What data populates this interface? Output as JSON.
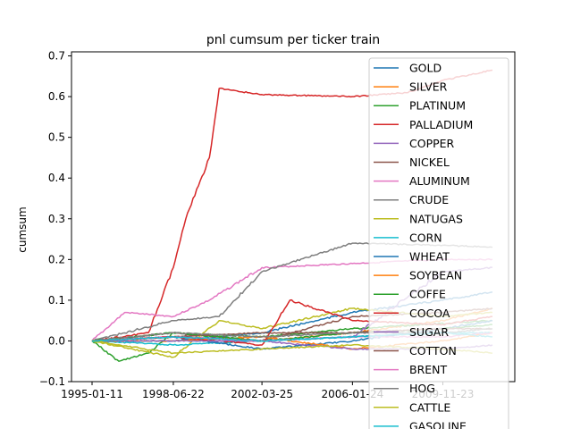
{
  "chart_data": {
    "type": "line",
    "title": "pnl cumsum per ticker train",
    "xlabel": "",
    "ylabel": "cumsum",
    "x_tick_labels": [
      "1995-01-11",
      "1998-06-22",
      "2002-03-25",
      "2006-01-24",
      "2009-11-23"
    ],
    "x_range": [
      "1995-01-11",
      "2011-12-31"
    ],
    "y_ticks": [
      -0.1,
      0.0,
      0.1,
      0.2,
      0.3,
      0.4,
      0.5,
      0.6,
      0.7
    ],
    "y_tick_labels": [
      "−0.1",
      "0.0",
      "0.1",
      "0.2",
      "0.3",
      "0.4",
      "0.5",
      "0.6",
      "0.7"
    ],
    "ylim": [
      -0.1,
      0.71
    ],
    "grid": false,
    "legend_position": "right (partially clipped below the plot)",
    "series": [
      {
        "name": "GOLD",
        "color": "#1f77b4",
        "x": [
          "1995-01-11",
          "1998-06-22",
          "2002-03-25",
          "2006-01-24",
          "2009-11-23",
          "2011-12-31"
        ],
        "y": [
          0.0,
          0.0,
          0.02,
          0.07,
          0.1,
          0.12
        ]
      },
      {
        "name": "SILVER",
        "color": "#ff7f0e",
        "x": [
          "1995-01-11",
          "1998-06-22",
          "2002-03-25",
          "2006-01-24",
          "2009-11-23",
          "2011-12-31"
        ],
        "y": [
          0.0,
          0.01,
          0.0,
          0.02,
          0.05,
          0.08
        ]
      },
      {
        "name": "PLATINUM",
        "color": "#2ca02c",
        "x": [
          "1995-01-11",
          "1996-03-01",
          "1997-06-01",
          "1998-06-22",
          "2002-03-25",
          "2006-01-24",
          "2011-12-31"
        ],
        "y": [
          0.0,
          -0.05,
          -0.03,
          0.02,
          0.01,
          0.03,
          0.05
        ]
      },
      {
        "name": "PALLADIUM",
        "color": "#d62728",
        "x": [
          "1995-01-11",
          "1997-06-01",
          "1998-06-22",
          "1999-01-01",
          "2000-01-01",
          "2000-06-01",
          "2002-03-25",
          "2006-01-24",
          "2008-06-01",
          "2009-11-23",
          "2011-12-31"
        ],
        "y": [
          0.0,
          0.02,
          0.18,
          0.3,
          0.45,
          0.62,
          0.605,
          0.6,
          0.61,
          0.64,
          0.665
        ]
      },
      {
        "name": "COPPER",
        "color": "#9467bd",
        "x": [
          "1995-01-11",
          "1998-06-22",
          "2002-03-25",
          "2006-01-24",
          "2009-11-23",
          "2011-12-31"
        ],
        "y": [
          0.0,
          0.01,
          0.0,
          0.01,
          0.17,
          0.18
        ]
      },
      {
        "name": "NICKEL",
        "color": "#8c564b",
        "x": [
          "1995-01-11",
          "1998-06-22",
          "2002-03-25",
          "2006-01-24",
          "2009-11-23",
          "2011-12-31"
        ],
        "y": [
          0.0,
          0.02,
          0.0,
          0.06,
          0.07,
          0.08
        ]
      },
      {
        "name": "ALUMINUM",
        "color": "#e377c2",
        "x": [
          "1995-01-11",
          "1996-06-01",
          "1998-06-22",
          "2000-01-01",
          "2002-03-25",
          "2006-01-24",
          "2009-11-23",
          "2011-12-31"
        ],
        "y": [
          0.0,
          0.07,
          0.06,
          0.1,
          0.18,
          0.19,
          0.2,
          0.2
        ]
      },
      {
        "name": "CRUDE",
        "color": "#7f7f7f",
        "x": [
          "1995-01-11",
          "1998-06-22",
          "2000-06-01",
          "2002-03-25",
          "2004-06-01",
          "2006-01-24",
          "2009-11-23",
          "2011-12-31"
        ],
        "y": [
          0.0,
          0.05,
          0.06,
          0.17,
          0.21,
          0.24,
          0.235,
          0.23
        ]
      },
      {
        "name": "NATUGAS",
        "color": "#bcbd22",
        "x": [
          "1995-01-11",
          "1998-06-22",
          "2000-06-01",
          "2002-03-25",
          "2006-01-24",
          "2009-11-23",
          "2011-12-31"
        ],
        "y": [
          0.0,
          -0.04,
          0.05,
          0.03,
          0.08,
          0.06,
          0.07
        ]
      },
      {
        "name": "CORN",
        "color": "#17becf",
        "x": [
          "1995-01-11",
          "1998-06-22",
          "2002-03-25",
          "2006-01-24",
          "2009-11-23",
          "2011-12-31"
        ],
        "y": [
          0.0,
          -0.01,
          0.0,
          0.01,
          0.02,
          0.02
        ]
      },
      {
        "name": "WHEAT",
        "color": "#1f77b4",
        "x": [
          "1995-01-11",
          "1998-06-22",
          "2002-03-25",
          "2006-01-24",
          "2009-11-23",
          "2011-12-31"
        ],
        "y": [
          0.0,
          0.01,
          -0.02,
          0.0,
          0.03,
          0.05
        ]
      },
      {
        "name": "SOYBEAN",
        "color": "#ff7f0e",
        "x": [
          "1995-01-11",
          "1998-06-22",
          "2002-03-25",
          "2006-01-24",
          "2009-11-23",
          "2011-12-31"
        ],
        "y": [
          0.0,
          0.0,
          0.01,
          -0.02,
          0.0,
          0.02
        ]
      },
      {
        "name": "COFFE",
        "color": "#2ca02c",
        "x": [
          "1995-01-11",
          "1998-06-22",
          "2002-03-25",
          "2006-01-24",
          "2009-11-23",
          "2011-12-31"
        ],
        "y": [
          0.0,
          0.02,
          0.0,
          0.02,
          0.03,
          0.04
        ]
      },
      {
        "name": "COCOA",
        "color": "#d62728",
        "x": [
          "1995-01-11",
          "1998-06-22",
          "2002-03-25",
          "2003-06-01",
          "2006-01-24",
          "2009-11-23",
          "2011-12-31"
        ],
        "y": [
          0.0,
          0.01,
          -0.01,
          0.1,
          0.05,
          0.04,
          0.06
        ]
      },
      {
        "name": "SUGAR",
        "color": "#9467bd",
        "x": [
          "1995-01-11",
          "1998-06-22",
          "2002-03-25",
          "2006-01-24",
          "2009-11-23",
          "2011-12-31"
        ],
        "y": [
          0.0,
          0.0,
          0.0,
          -0.02,
          -0.02,
          -0.01
        ]
      },
      {
        "name": "COTTON",
        "color": "#8c564b",
        "x": [
          "1995-01-11",
          "1998-06-22",
          "2002-03-25",
          "2006-01-24",
          "2009-11-23",
          "2011-12-31"
        ],
        "y": [
          0.0,
          0.01,
          0.02,
          0.02,
          0.03,
          0.03
        ]
      },
      {
        "name": "BRENT",
        "color": "#e377c2",
        "x": [
          "1995-01-11",
          "1998-06-22",
          "2002-03-25",
          "2006-01-24",
          "2009-11-23",
          "2011-12-31"
        ],
        "y": [
          0.0,
          0.01,
          0.0,
          0.01,
          0.01,
          0.02
        ]
      },
      {
        "name": "HOG",
        "color": "#7f7f7f",
        "x": [
          "1995-01-11",
          "1998-06-22",
          "2002-03-25",
          "2006-01-24",
          "2009-11-23",
          "2011-12-31"
        ],
        "y": [
          0.0,
          0.02,
          0.01,
          0.02,
          0.02,
          0.03
        ]
      },
      {
        "name": "CATTLE",
        "color": "#bcbd22",
        "x": [
          "1995-01-11",
          "1998-06-22",
          "2002-03-25",
          "2006-01-24",
          "2009-11-23",
          "2011-12-31"
        ],
        "y": [
          0.0,
          -0.03,
          -0.02,
          -0.01,
          -0.02,
          -0.03
        ]
      },
      {
        "name": "GASOLINE",
        "color": "#17becf",
        "x": [
          "1995-01-11",
          "1998-06-22",
          "2002-03-25",
          "2006-01-24",
          "2009-11-23",
          "2011-12-31"
        ],
        "y": [
          0.0,
          0.01,
          0.0,
          0.01,
          0.02,
          0.01
        ]
      }
    ]
  }
}
